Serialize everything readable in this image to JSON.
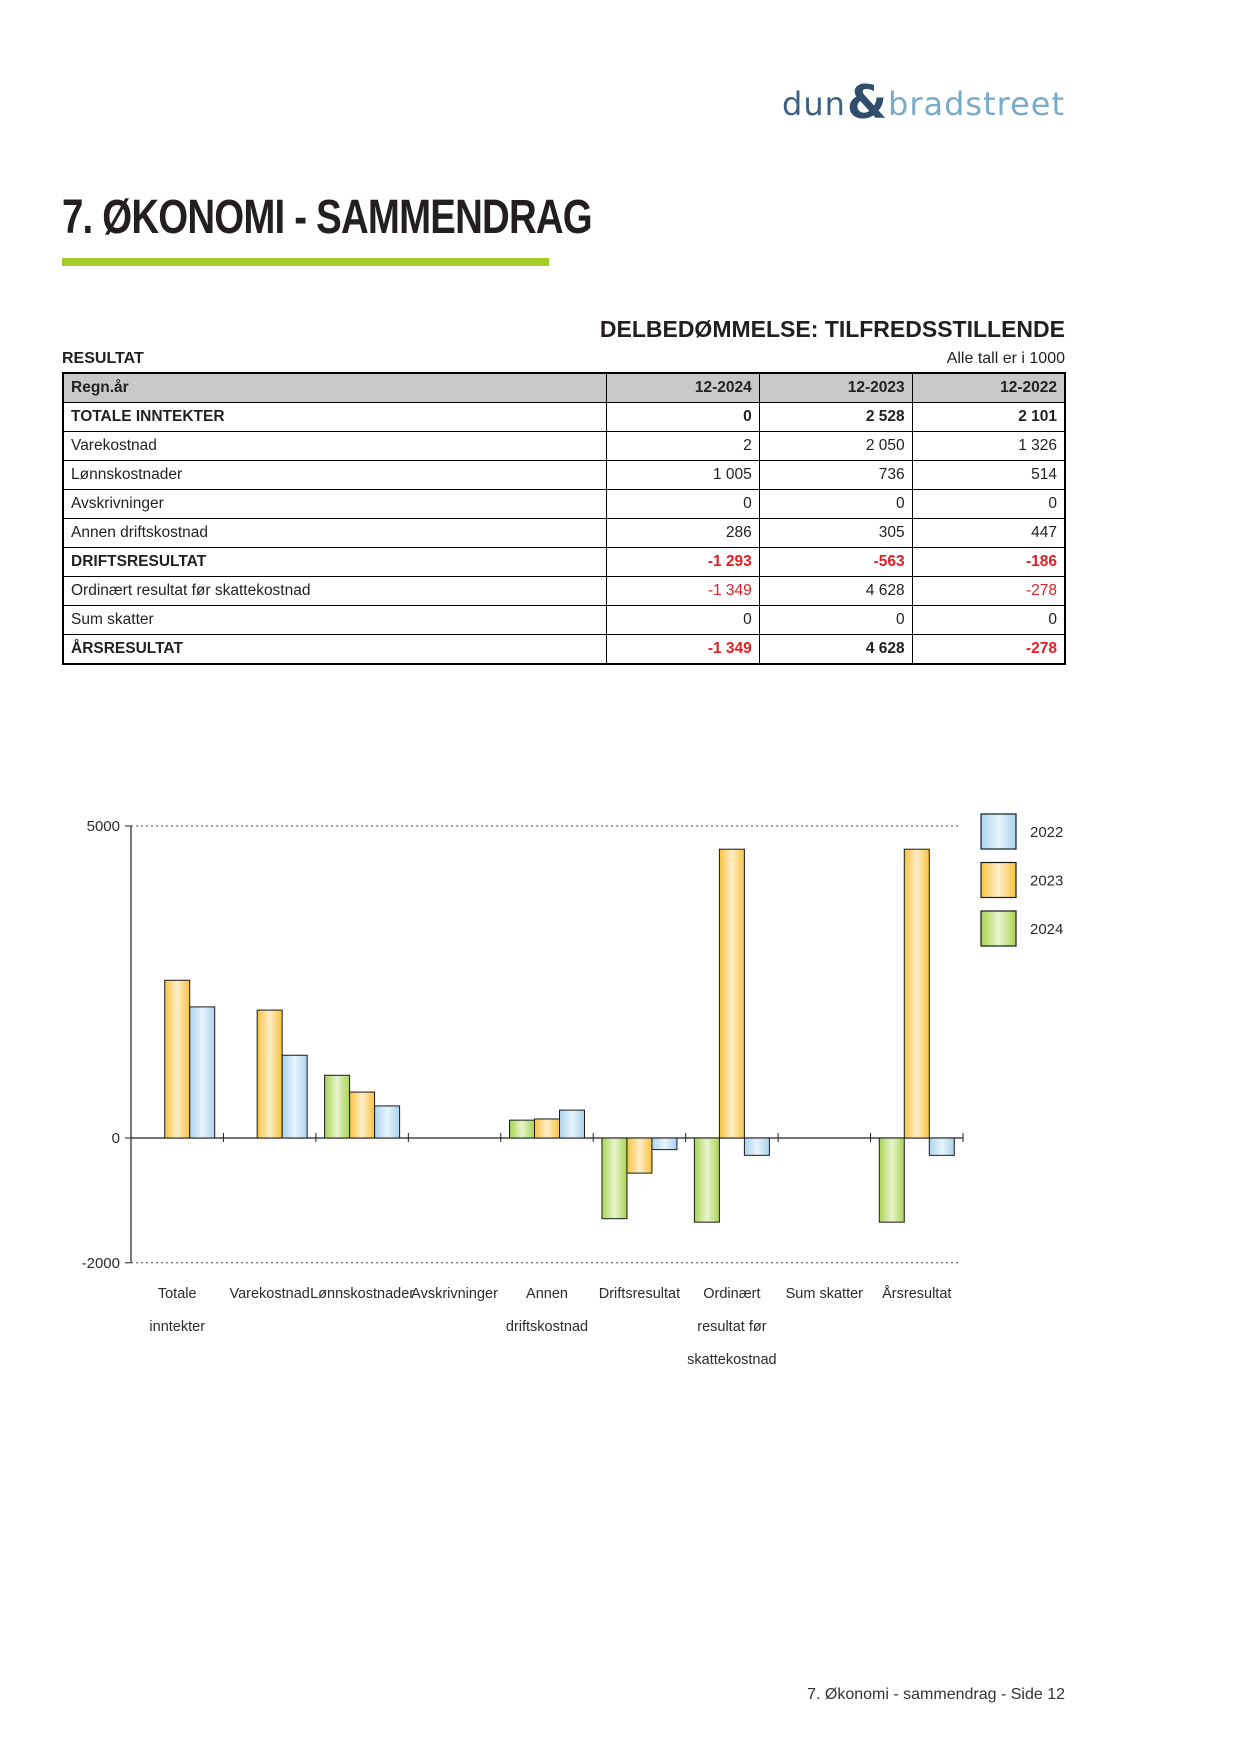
{
  "logo": {
    "dun": "dun",
    "ampersand": "&",
    "bradstreet": "bradstreet"
  },
  "page": {
    "title": "7. ØKONOMI - SAMMENDRAG",
    "footer": "7. Økonomi - sammendrag - Side 12"
  },
  "assessment": {
    "label": "DELBEDØMMELSE: TILFREDSSTILLENDE"
  },
  "section": {
    "label": "RESULTAT",
    "note": "Alle tall er i 1000"
  },
  "table": {
    "columns": [
      "Regn.år",
      "12-2024",
      "12-2023",
      "12-2022"
    ],
    "rows": [
      {
        "label": "TOTALE INNTEKTER",
        "bold": true,
        "values": [
          "0",
          "2 528",
          "2 101"
        ]
      },
      {
        "label": "Varekostnad",
        "bold": false,
        "values": [
          "2",
          "2 050",
          "1 326"
        ]
      },
      {
        "label": "Lønnskostnader",
        "bold": false,
        "values": [
          "1 005",
          "736",
          "514"
        ]
      },
      {
        "label": "Avskrivninger",
        "bold": false,
        "values": [
          "0",
          "0",
          "0"
        ]
      },
      {
        "label": "Annen driftskostnad",
        "bold": false,
        "values": [
          "286",
          "305",
          "447"
        ]
      },
      {
        "label": "DRIFTSRESULTAT",
        "bold": true,
        "values": [
          "-1 293",
          "-563",
          "-186"
        ]
      },
      {
        "label": "Ordinært resultat før skattekostnad",
        "bold": false,
        "values": [
          "-1 349",
          "4 628",
          "-278"
        ]
      },
      {
        "label": "Sum skatter",
        "bold": false,
        "values": [
          "0",
          "0",
          "0"
        ]
      },
      {
        "label": "ÅRSRESULTAT",
        "bold": true,
        "values": [
          "-1 349",
          "4 628",
          "-278"
        ]
      }
    ],
    "negative_color": "#e31e24"
  },
  "chart_data": {
    "type": "bar",
    "title": "",
    "xlabel": "",
    "ylabel": "",
    "ylim": [
      -2000,
      5000
    ],
    "y_ticks": [
      {
        "label": "5000",
        "value": 5000
      },
      {
        "label": "0",
        "value": 0
      },
      {
        "label": "-2000",
        "value": -2000
      }
    ],
    "grid": "dotted lines at 5000 and -2000, solid zero line",
    "legend_position": "top-right",
    "legend_order": [
      "2022",
      "2023",
      "2024"
    ],
    "bar_order": [
      "2024",
      "2023",
      "2022"
    ],
    "categories": [
      "Totale inntekter",
      "Varekostnad",
      "Lønnskostnader",
      "Avskrivninger",
      "Annen driftskostnad",
      "Driftsresultat",
      "Ordinært resultat før skattekostnad",
      "Sum skatter",
      "Årsresultat"
    ],
    "category_label_lines": [
      [
        "Totale",
        "inntekter"
      ],
      [
        "Varekostnad"
      ],
      [
        "Lønnskostnader"
      ],
      [
        "Avskrivninger"
      ],
      [
        "Annen",
        "driftskostnad"
      ],
      [
        "Driftsresultat"
      ],
      [
        "Ordinært",
        "resultat før",
        "skattekostnad"
      ],
      [
        "Sum skatter"
      ],
      [
        "Årsresultat"
      ]
    ],
    "series": [
      {
        "name": "2024",
        "edge_color": "#a8d34f",
        "center_color": "#e9f4cf",
        "values": [
          0,
          2,
          1005,
          0,
          286,
          -1293,
          -1349,
          0,
          -1349
        ]
      },
      {
        "name": "2023",
        "edge_color": "#f8c23c",
        "center_color": "#fdeecb",
        "values": [
          2528,
          2050,
          736,
          0,
          305,
          -563,
          4628,
          0,
          4628
        ]
      },
      {
        "name": "2022",
        "edge_color": "#a9d3ee",
        "center_color": "#e8f4fc",
        "values": [
          2101,
          1326,
          514,
          0,
          447,
          -186,
          -278,
          0,
          -278
        ]
      }
    ],
    "bar_outline_color": "#1a1a1a"
  }
}
